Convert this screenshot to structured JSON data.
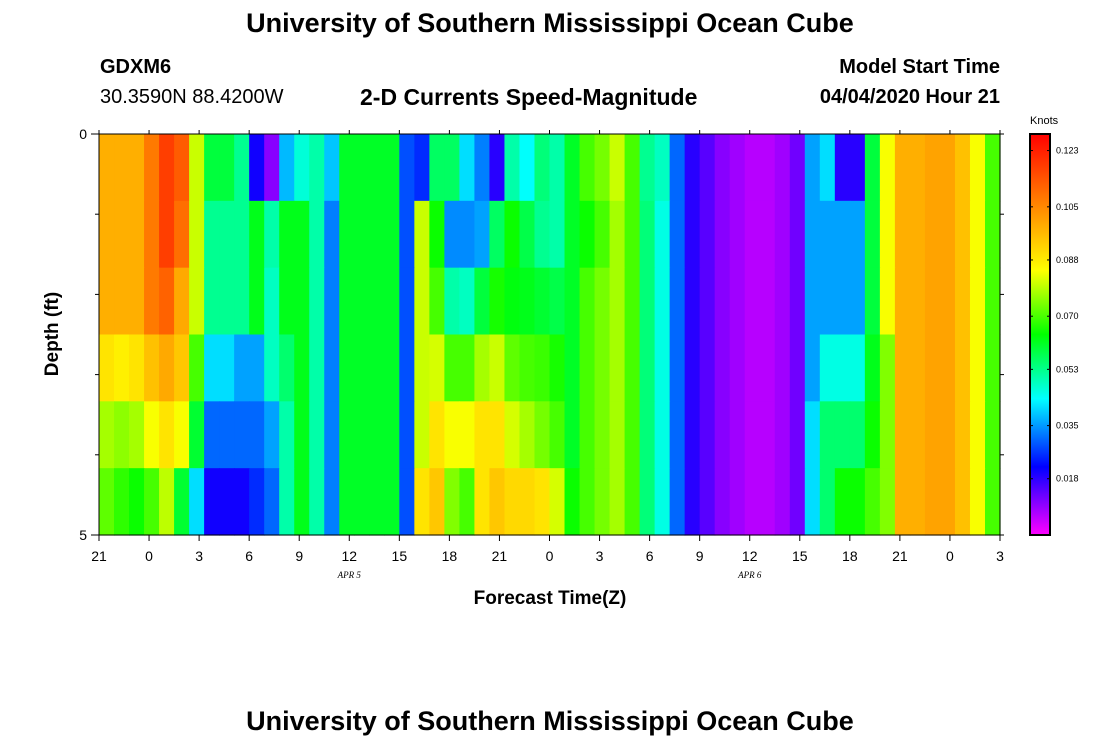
{
  "header": {
    "title_top": "University of Southern Mississippi Ocean Cube",
    "title_bottom": "University of Southern Mississippi Ocean Cube",
    "station_id": "GDXM6",
    "station_coords": "30.3590N 88.4200W",
    "model_start_label": "Model Start Time",
    "model_start_value": "04/04/2020 Hour 21"
  },
  "colors": {
    "scale": [
      "#ff00ff",
      "#0000ff",
      "#00ffff",
      "#00ff00",
      "#ffff00",
      "#ff8000",
      "#ff0000"
    ]
  },
  "chart_data": {
    "type": "heatmap",
    "title": "2-D Currents Speed-Magnitude",
    "xlabel": "Forecast Time(Z)",
    "ylabel": "Depth (ft)",
    "x_tick_labels": [
      "21",
      "0",
      "3",
      "6",
      "9",
      "12",
      "15",
      "18",
      "21",
      "0",
      "3",
      "6",
      "9",
      "12",
      "15",
      "18",
      "21",
      "0",
      "3"
    ],
    "x_date_labels": [
      {
        "label": "APR 5",
        "after_tick_index": 5
      },
      {
        "label": "APR 6",
        "after_tick_index": 13
      }
    ],
    "ylim": [
      0,
      5
    ],
    "y_tick_labels": [
      "0",
      "5"
    ],
    "colorbar": {
      "unit": "Knots",
      "range": [
        0.0,
        0.1283
      ],
      "tick_labels": [
        "0.123",
        "0.105",
        "0.088",
        "0.070",
        "0.053",
        "0.035",
        "0.018"
      ],
      "tick_values": [
        0.123,
        0.105,
        0.088,
        0.07,
        0.053,
        0.035,
        0.018
      ]
    },
    "depth_bins_ft": [
      0,
      1,
      2,
      3,
      4,
      5
    ],
    "time_steps_hours": 54,
    "values_knots": [
      [
        0.099,
        0.099,
        0.099,
        0.108,
        0.118,
        0.113,
        0.081,
        0.059,
        0.059,
        0.052,
        0.02,
        0.01,
        0.037,
        0.046,
        0.05,
        0.038,
        0.061,
        0.061,
        0.061,
        0.061,
        0.028,
        0.025,
        0.056,
        0.056,
        0.04,
        0.032,
        0.018,
        0.05,
        0.043,
        0.054,
        0.05,
        0.061,
        0.07,
        0.074,
        0.081,
        0.07,
        0.052,
        0.048,
        0.03,
        0.018,
        0.014,
        0.01,
        0.008,
        0.006,
        0.006,
        0.008,
        0.012,
        0.035,
        0.04,
        0.018,
        0.018,
        0.059,
        0.085,
        0.099,
        0.099,
        0.101,
        0.101,
        0.096,
        0.085,
        0.07
      ],
      [
        0.099,
        0.099,
        0.099,
        0.108,
        0.118,
        0.11,
        0.081,
        0.052,
        0.052,
        0.052,
        0.062,
        0.05,
        0.062,
        0.062,
        0.05,
        0.032,
        0.061,
        0.061,
        0.061,
        0.061,
        0.028,
        0.081,
        0.065,
        0.033,
        0.033,
        0.035,
        0.056,
        0.065,
        0.058,
        0.052,
        0.05,
        0.061,
        0.065,
        0.07,
        0.078,
        0.07,
        0.054,
        0.045,
        0.03,
        0.018,
        0.014,
        0.01,
        0.008,
        0.006,
        0.006,
        0.008,
        0.012,
        0.035,
        0.035,
        0.035,
        0.035,
        0.059,
        0.085,
        0.099,
        0.099,
        0.101,
        0.101,
        0.096,
        0.085,
        0.07
      ],
      [
        0.099,
        0.099,
        0.099,
        0.108,
        0.112,
        0.1,
        0.081,
        0.052,
        0.052,
        0.052,
        0.062,
        0.048,
        0.062,
        0.062,
        0.05,
        0.032,
        0.061,
        0.061,
        0.061,
        0.061,
        0.028,
        0.081,
        0.07,
        0.05,
        0.048,
        0.059,
        0.066,
        0.063,
        0.062,
        0.06,
        0.058,
        0.061,
        0.07,
        0.074,
        0.078,
        0.07,
        0.054,
        0.045,
        0.03,
        0.018,
        0.014,
        0.01,
        0.008,
        0.006,
        0.006,
        0.008,
        0.012,
        0.035,
        0.035,
        0.035,
        0.035,
        0.059,
        0.085,
        0.099,
        0.099,
        0.101,
        0.101,
        0.096,
        0.085,
        0.07
      ],
      [
        0.09,
        0.088,
        0.09,
        0.096,
        0.1,
        0.095,
        0.07,
        0.04,
        0.04,
        0.035,
        0.035,
        0.048,
        0.055,
        0.062,
        0.05,
        0.032,
        0.061,
        0.061,
        0.061,
        0.061,
        0.028,
        0.081,
        0.082,
        0.07,
        0.07,
        0.078,
        0.081,
        0.072,
        0.07,
        0.069,
        0.066,
        0.061,
        0.07,
        0.074,
        0.078,
        0.07,
        0.054,
        0.045,
        0.03,
        0.018,
        0.014,
        0.01,
        0.008,
        0.006,
        0.006,
        0.008,
        0.012,
        0.035,
        0.045,
        0.045,
        0.045,
        0.062,
        0.075,
        0.099,
        0.099,
        0.101,
        0.101,
        0.096,
        0.085,
        0.07
      ],
      [
        0.078,
        0.076,
        0.078,
        0.085,
        0.09,
        0.085,
        0.06,
        0.03,
        0.03,
        0.03,
        0.03,
        0.035,
        0.05,
        0.062,
        0.05,
        0.032,
        0.061,
        0.061,
        0.061,
        0.061,
        0.028,
        0.081,
        0.09,
        0.085,
        0.085,
        0.09,
        0.09,
        0.082,
        0.078,
        0.074,
        0.07,
        0.061,
        0.07,
        0.074,
        0.078,
        0.07,
        0.054,
        0.045,
        0.03,
        0.018,
        0.014,
        0.01,
        0.008,
        0.006,
        0.006,
        0.008,
        0.012,
        0.04,
        0.055,
        0.055,
        0.055,
        0.065,
        0.075,
        0.099,
        0.099,
        0.101,
        0.101,
        0.096,
        0.085,
        0.07
      ],
      [
        0.072,
        0.068,
        0.065,
        0.07,
        0.08,
        0.06,
        0.04,
        0.02,
        0.02,
        0.02,
        0.025,
        0.03,
        0.05,
        0.062,
        0.05,
        0.032,
        0.061,
        0.061,
        0.061,
        0.061,
        0.028,
        0.09,
        0.095,
        0.075,
        0.07,
        0.09,
        0.095,
        0.092,
        0.092,
        0.09,
        0.082,
        0.065,
        0.07,
        0.074,
        0.078,
        0.07,
        0.054,
        0.045,
        0.03,
        0.018,
        0.014,
        0.01,
        0.008,
        0.006,
        0.006,
        0.008,
        0.012,
        0.04,
        0.055,
        0.065,
        0.065,
        0.07,
        0.075,
        0.099,
        0.099,
        0.101,
        0.101,
        0.096,
        0.085,
        0.07
      ]
    ]
  }
}
